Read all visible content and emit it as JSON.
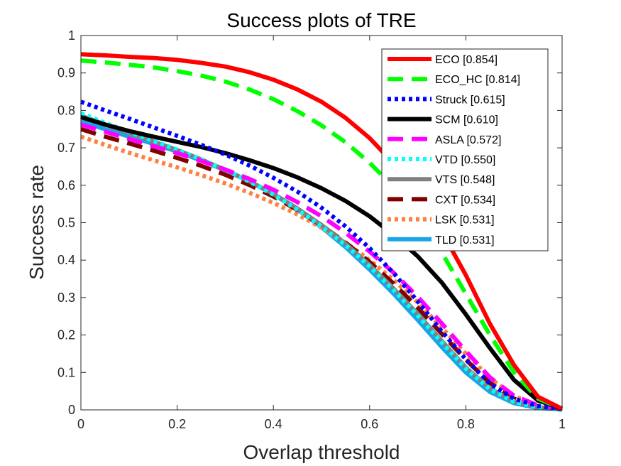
{
  "chart_data": {
    "type": "line",
    "title": "Success plots of TRE",
    "xlabel": "Overlap threshold",
    "ylabel": "Success rate",
    "xlim": [
      0,
      1
    ],
    "ylim": [
      0,
      1
    ],
    "xticks": [
      "0",
      "0.2",
      "0.4",
      "0.6",
      "0.8",
      "1"
    ],
    "yticks": [
      "0",
      "0.1",
      "0.2",
      "0.3",
      "0.4",
      "0.5",
      "0.6",
      "0.7",
      "0.8",
      "0.9",
      "1"
    ],
    "legend_position": "top-right",
    "x": [
      0,
      0.05,
      0.1,
      0.15,
      0.2,
      0.25,
      0.3,
      0.35,
      0.4,
      0.45,
      0.5,
      0.55,
      0.6,
      0.65,
      0.7,
      0.75,
      0.8,
      0.85,
      0.9,
      0.95,
      1
    ],
    "series": [
      {
        "name": "ECO",
        "legend": "ECO [0.854]",
        "color": "#ff0000",
        "style": "solid",
        "values": [
          0.95,
          0.947,
          0.943,
          0.94,
          0.935,
          0.927,
          0.917,
          0.902,
          0.882,
          0.856,
          0.823,
          0.78,
          0.726,
          0.658,
          0.575,
          0.476,
          0.36,
          0.23,
          0.12,
          0.035,
          0.003
        ]
      },
      {
        "name": "ECO_HC",
        "legend": "ECO_HC [0.814]",
        "color": "#00ff00",
        "style": "dashed",
        "values": [
          0.933,
          0.928,
          0.922,
          0.915,
          0.905,
          0.893,
          0.877,
          0.856,
          0.83,
          0.798,
          0.76,
          0.715,
          0.66,
          0.595,
          0.515,
          0.42,
          0.31,
          0.2,
          0.1,
          0.03,
          0.003
        ]
      },
      {
        "name": "Struck",
        "legend": "Struck [0.615]",
        "color": "#0000ff",
        "style": "dotted",
        "values": [
          0.823,
          0.8,
          0.778,
          0.755,
          0.732,
          0.708,
          0.682,
          0.653,
          0.62,
          0.583,
          0.54,
          0.49,
          0.432,
          0.365,
          0.29,
          0.21,
          0.135,
          0.07,
          0.03,
          0.01,
          0.002
        ]
      },
      {
        "name": "SCM",
        "legend": "SCM [0.610]",
        "color": "#000000",
        "style": "solid",
        "values": [
          0.782,
          0.762,
          0.745,
          0.73,
          0.716,
          0.702,
          0.686,
          0.667,
          0.646,
          0.621,
          0.592,
          0.558,
          0.517,
          0.467,
          0.41,
          0.34,
          0.255,
          0.165,
          0.08,
          0.025,
          0.003
        ]
      },
      {
        "name": "ASLA",
        "legend": "ASLA [0.572]",
        "color": "#ff00ff",
        "style": "dashed",
        "values": [
          0.762,
          0.743,
          0.724,
          0.705,
          0.686,
          0.665,
          0.642,
          0.617,
          0.588,
          0.555,
          0.517,
          0.473,
          0.423,
          0.366,
          0.302,
          0.231,
          0.157,
          0.087,
          0.038,
          0.012,
          0.002
        ]
      },
      {
        "name": "VTD",
        "legend": "VTD [0.550]",
        "color": "#00ffff",
        "style": "dotted",
        "values": [
          0.792,
          0.767,
          0.743,
          0.719,
          0.695,
          0.669,
          0.641,
          0.61,
          0.575,
          0.535,
          0.49,
          0.44,
          0.383,
          0.32,
          0.252,
          0.18,
          0.11,
          0.055,
          0.022,
          0.007,
          0.001
        ]
      },
      {
        "name": "VTS",
        "legend": "VTS [0.548]",
        "color": "#808080",
        "style": "solid",
        "values": [
          0.786,
          0.763,
          0.74,
          0.717,
          0.694,
          0.669,
          0.641,
          0.611,
          0.577,
          0.538,
          0.494,
          0.444,
          0.387,
          0.324,
          0.256,
          0.184,
          0.113,
          0.057,
          0.023,
          0.007,
          0.001
        ]
      },
      {
        "name": "CXT",
        "legend": "CXT [0.534]",
        "color": "#800000",
        "style": "dashed",
        "values": [
          0.75,
          0.73,
          0.712,
          0.693,
          0.673,
          0.652,
          0.628,
          0.601,
          0.57,
          0.534,
          0.493,
          0.447,
          0.395,
          0.337,
          0.273,
          0.203,
          0.134,
          0.072,
          0.03,
          0.009,
          0.001
        ]
      },
      {
        "name": "LSK",
        "legend": "LSK [0.531]",
        "color": "#ff8040",
        "style": "dotted",
        "values": [
          0.73,
          0.708,
          0.687,
          0.667,
          0.648,
          0.627,
          0.605,
          0.58,
          0.553,
          0.522,
          0.487,
          0.447,
          0.4,
          0.347,
          0.287,
          0.22,
          0.15,
          0.085,
          0.037,
          0.011,
          0.001
        ]
      },
      {
        "name": "TLD",
        "legend": "TLD [0.531]",
        "color": "#1aa4e8",
        "style": "solid",
        "values": [
          0.77,
          0.75,
          0.73,
          0.711,
          0.69,
          0.666,
          0.64,
          0.61,
          0.576,
          0.535,
          0.488,
          0.435,
          0.375,
          0.31,
          0.24,
          0.168,
          0.1,
          0.048,
          0.018,
          0.005,
          0.001
        ]
      }
    ]
  }
}
